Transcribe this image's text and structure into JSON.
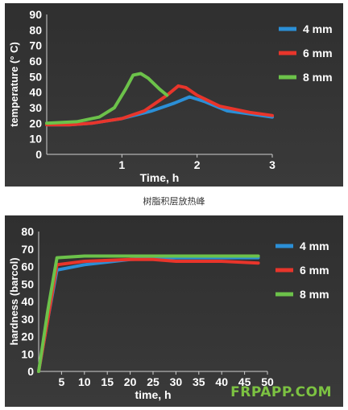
{
  "caption": "树脂积层放热峰",
  "watermark": "FRPAPP.COM",
  "colors": {
    "series_4mm": "#2b8fd6",
    "series_6mm": "#e8352b",
    "series_8mm": "#6cc24a",
    "background_top": "#2f2f2f",
    "background_bottom": "#3a3a3a",
    "text": "#ffffff"
  },
  "chart_data": [
    {
      "type": "line",
      "title": "",
      "xlabel": "Time, h",
      "ylabel": "temperature (° C)",
      "xlim": [
        0,
        3
      ],
      "ylim": [
        0,
        90
      ],
      "xticks": [
        "1",
        "2",
        "3"
      ],
      "yticks": [
        "0",
        "10",
        "20",
        "30",
        "40",
        "50",
        "60",
        "70",
        "80",
        "90"
      ],
      "grid": false,
      "legend": "top-right",
      "series": [
        {
          "name": "4 mm",
          "x": [
            0,
            0.3,
            0.6,
            1.0,
            1.4,
            1.7,
            1.9,
            2.1,
            2.4,
            2.7,
            3.0
          ],
          "y": [
            19,
            19,
            20,
            23,
            28,
            33,
            37,
            34,
            28,
            26,
            24
          ]
        },
        {
          "name": "6 mm",
          "x": [
            0,
            0.3,
            0.6,
            1.0,
            1.3,
            1.6,
            1.75,
            1.85,
            2.0,
            2.3,
            2.7,
            3.0
          ],
          "y": [
            19,
            19,
            20,
            23,
            28,
            38,
            44,
            43,
            38,
            31,
            27,
            25
          ]
        },
        {
          "name": "8 mm",
          "x": [
            0,
            0.4,
            0.7,
            0.9,
            1.05,
            1.15,
            1.25,
            1.35,
            1.5,
            1.6
          ],
          "y": [
            20,
            21,
            24,
            30,
            42,
            51,
            52,
            49,
            42,
            38
          ]
        }
      ]
    },
    {
      "type": "line",
      "title": "",
      "xlabel": "time, h",
      "ylabel": "hardness (barcol)",
      "xlim": [
        0,
        50
      ],
      "ylim": [
        0,
        80
      ],
      "xticks": [
        "5",
        "10",
        "15",
        "20",
        "25",
        "30",
        "35",
        "40",
        "45",
        "50"
      ],
      "yticks": [
        "0",
        "10",
        "20",
        "30",
        "40",
        "50",
        "60",
        "70",
        "80"
      ],
      "grid": false,
      "legend": "right",
      "series": [
        {
          "name": "4 mm",
          "x": [
            0,
            2,
            4,
            10,
            20,
            30,
            40,
            48
          ],
          "y": [
            0,
            30,
            58,
            61,
            64,
            65,
            65,
            65
          ]
        },
        {
          "name": "6 mm",
          "x": [
            0,
            2,
            4,
            10,
            20,
            25,
            30,
            40,
            48
          ],
          "y": [
            0,
            30,
            61,
            63,
            64,
            64,
            63,
            63,
            62
          ]
        },
        {
          "name": "8 mm",
          "x": [
            0,
            2,
            4,
            10,
            20,
            30,
            40,
            48
          ],
          "y": [
            0,
            35,
            65,
            66,
            66,
            66,
            66,
            66
          ]
        }
      ]
    }
  ]
}
